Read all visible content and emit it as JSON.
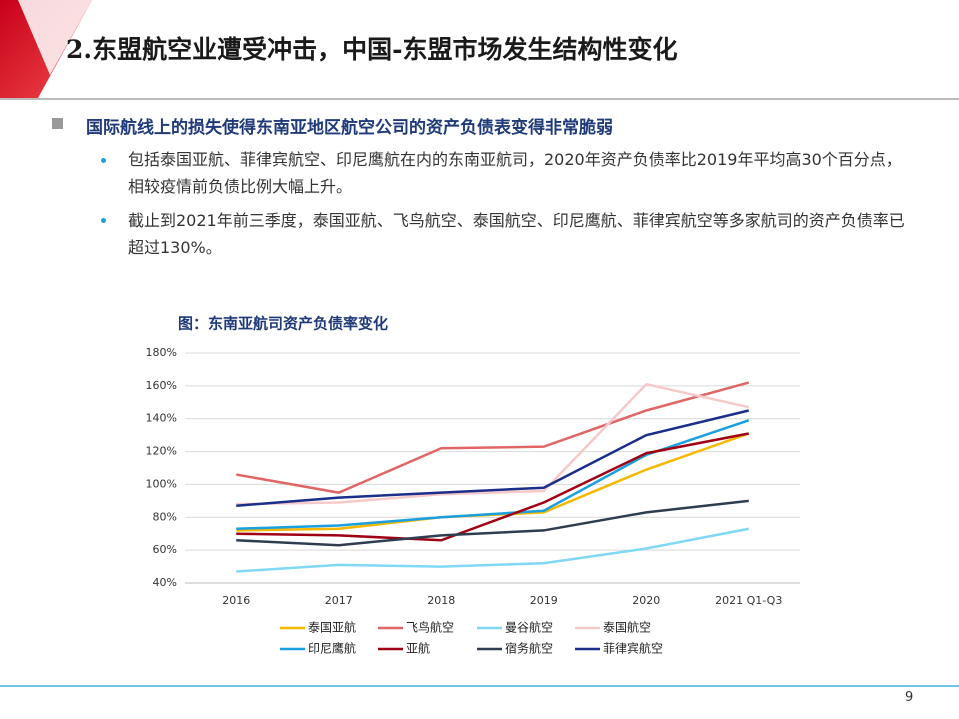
{
  "header": {
    "title": "2.东盟航空业遭受冲击，中国-东盟市场发生结构性变化"
  },
  "heading": "国际航线上的损失使得东南亚地区航空公司的资产负债表变得非常脆弱",
  "bullets": [
    "包括泰国亚航、菲律宾航空、印尼鹰航在内的东南亚航司，2020年资产负债率比2019年平均高30个百分点，相较疫情前负债比例大幅上升。",
    "截止到2021年前三季度，泰国亚航、飞鸟航空、泰国航空、印尼鹰航、菲律宾航空等多家航司的资产负债率已超过130%。"
  ],
  "chart_data": {
    "type": "line",
    "title": "图：东南亚航司资产负债率变化",
    "categories": [
      "2016",
      "2017",
      "2018",
      "2019",
      "2020",
      "2021 Q1-Q3"
    ],
    "ylim": [
      40,
      180
    ],
    "yticks": [
      {
        "value": 40,
        "label": "40%"
      },
      {
        "value": 60,
        "label": "60%"
      },
      {
        "value": 80,
        "label": "80%"
      },
      {
        "value": 100,
        "label": "100%"
      },
      {
        "value": 120,
        "label": "120%"
      },
      {
        "value": 140,
        "label": "140%"
      },
      {
        "value": 160,
        "label": "160%"
      },
      {
        "value": 180,
        "label": "180%"
      }
    ],
    "grid": true,
    "series": [
      {
        "name": "泰国亚航",
        "color": "#f5b800",
        "values": [
          72,
          73,
          80,
          83,
          109,
          131
        ]
      },
      {
        "name": "飞鸟航空",
        "color": "#e06666",
        "values": [
          106,
          95,
          122,
          123,
          145,
          162
        ]
      },
      {
        "name": "曼谷航空",
        "color": "#80d8f5",
        "values": [
          47,
          51,
          50,
          52,
          61,
          73
        ]
      },
      {
        "name": "泰国航空",
        "color": "#f6c9c9",
        "values": [
          88,
          89,
          94,
          96,
          161,
          147
        ]
      },
      {
        "name": "印尼鹰航",
        "color": "#1a9fe0",
        "values": [
          73,
          75,
          80,
          84,
          118,
          139
        ]
      },
      {
        "name": "亚航",
        "color": "#a00014",
        "values": [
          70,
          69,
          66,
          89,
          119,
          131
        ]
      },
      {
        "name": "宿务航空",
        "color": "#2e3d50",
        "values": [
          66,
          63,
          69,
          72,
          83,
          90
        ]
      },
      {
        "name": "菲律宾航空",
        "color": "#1a2e8a",
        "values": [
          87,
          92,
          95,
          98,
          130,
          145
        ]
      }
    ]
  },
  "page_number": "9"
}
